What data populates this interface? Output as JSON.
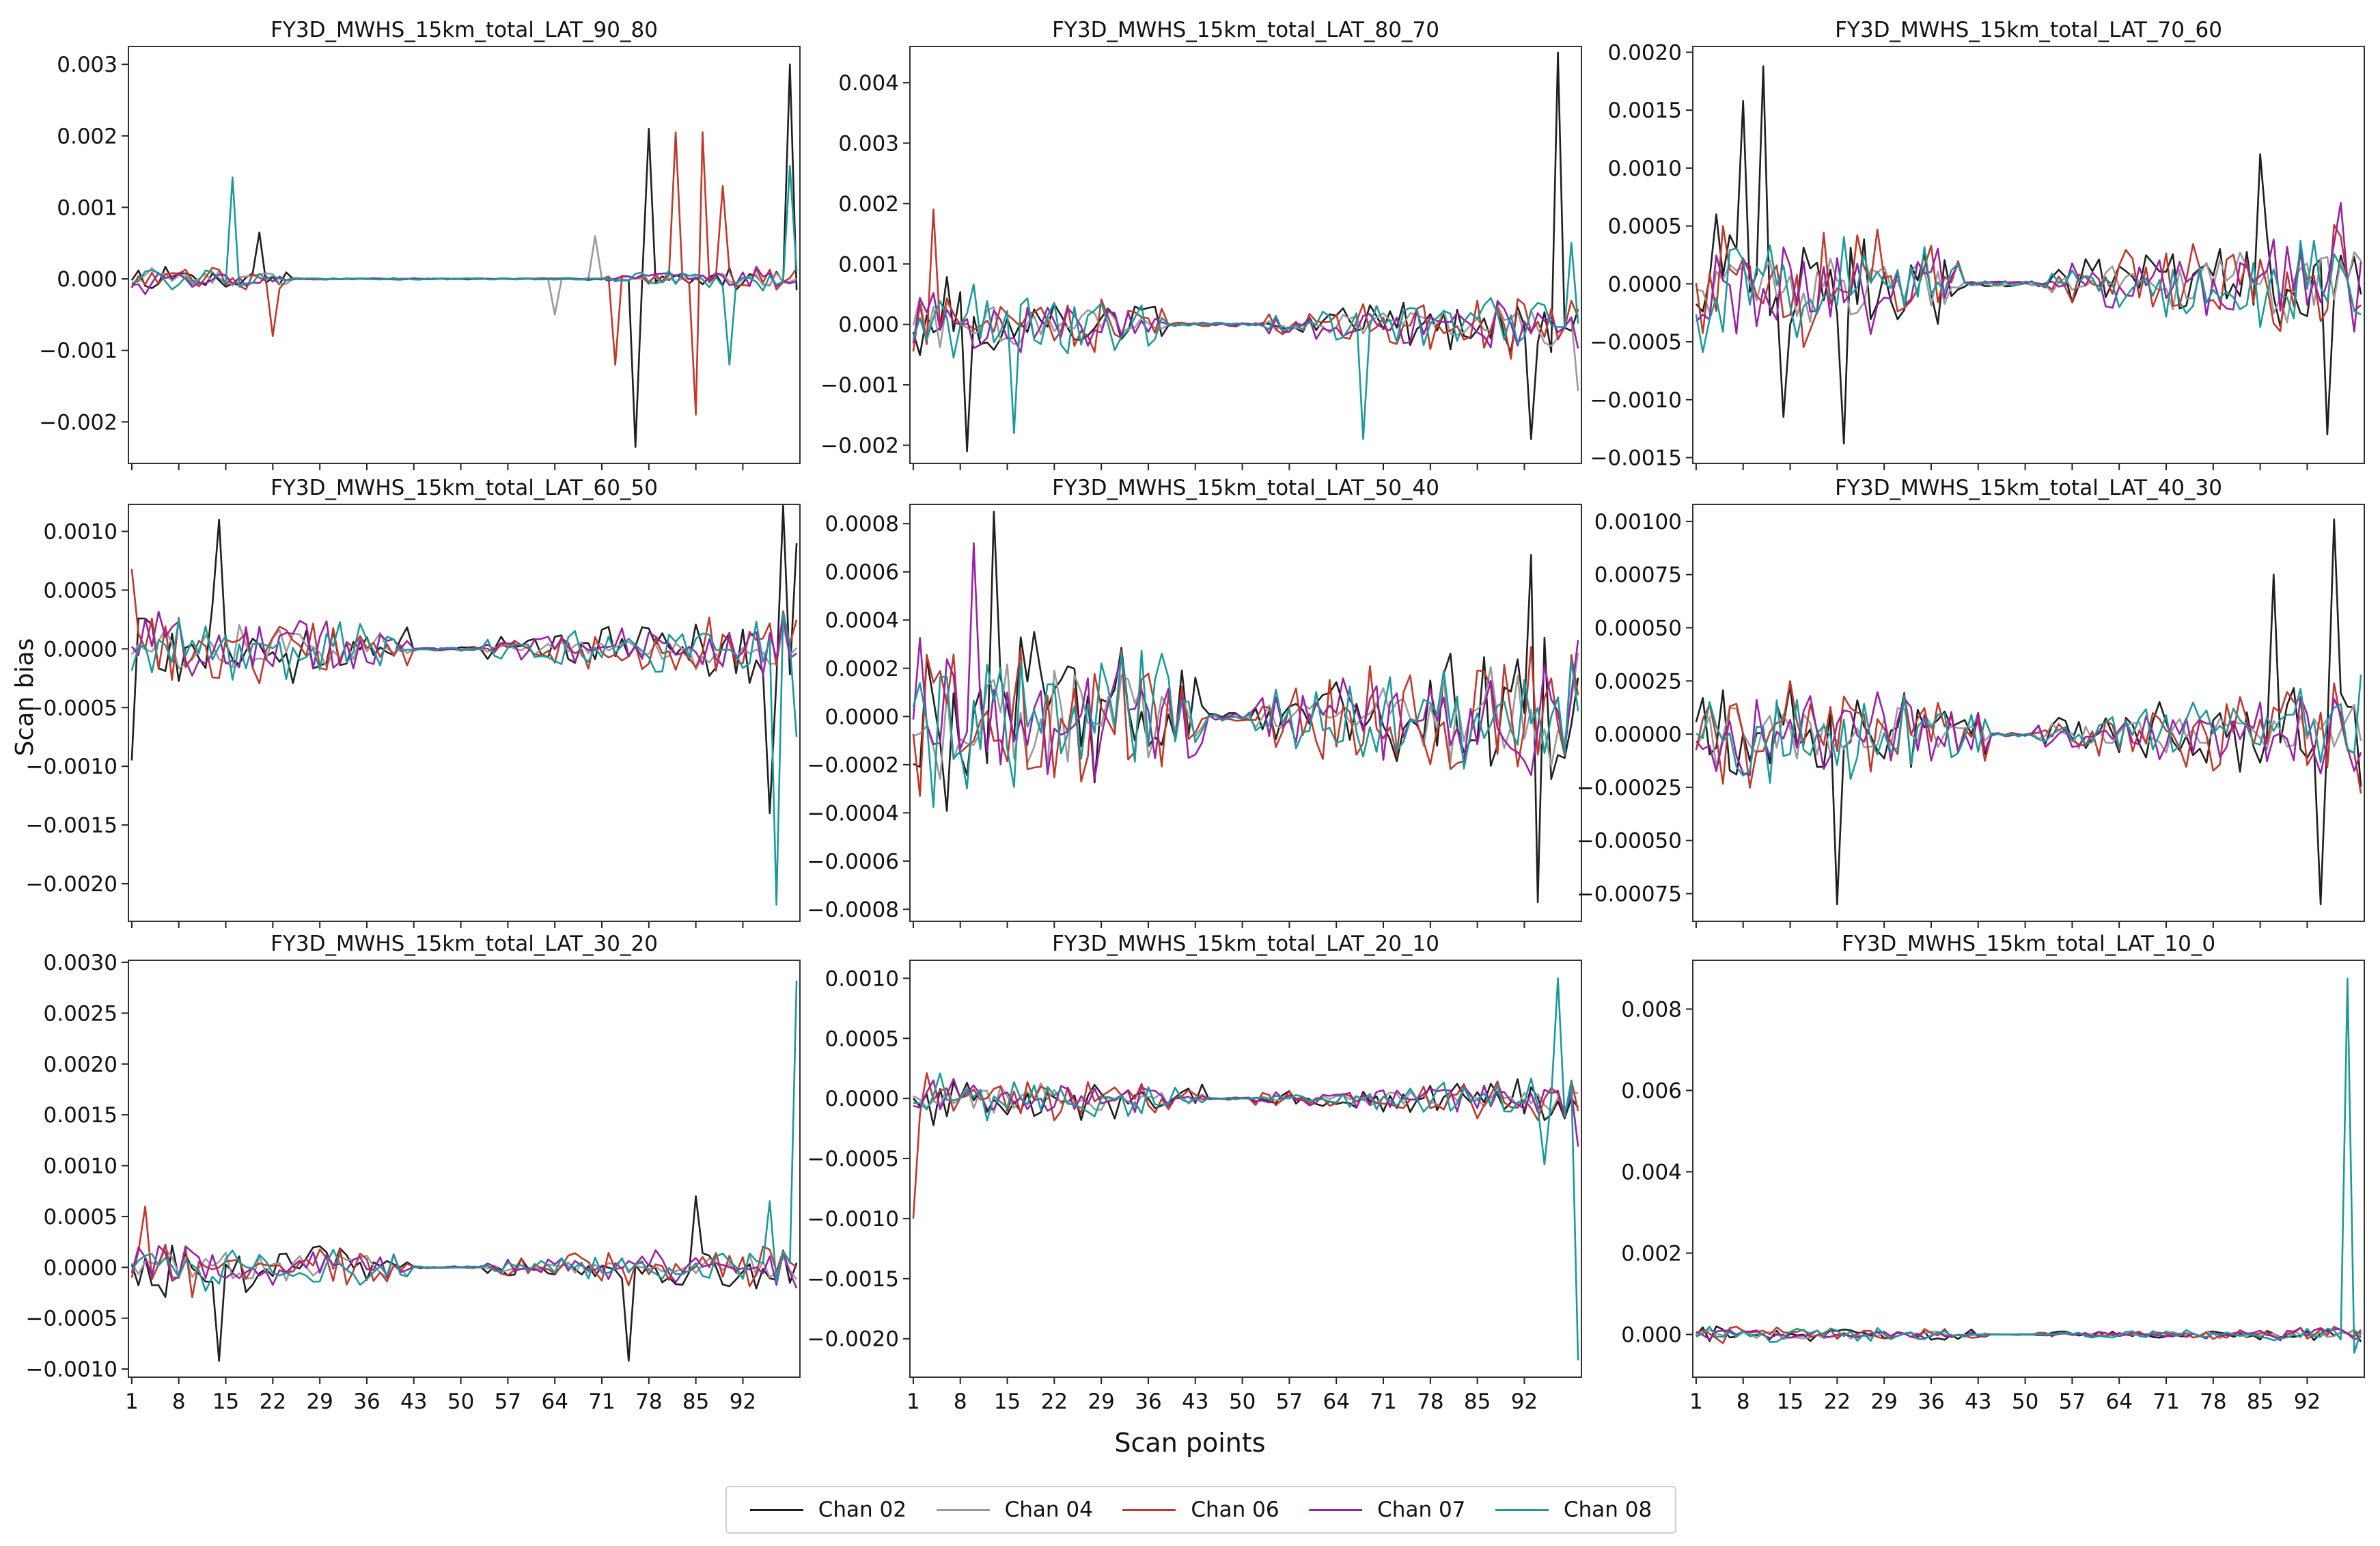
{
  "chart_data": {
    "type": "line",
    "ylabel": "Scan bias",
    "xlabel": "Scan points",
    "x_tick_labels": [
      "1",
      "8",
      "15",
      "22",
      "29",
      "36",
      "43",
      "50",
      "57",
      "64",
      "71",
      "78",
      "85",
      "92"
    ],
    "x_tick_values": [
      1,
      8,
      15,
      22,
      29,
      36,
      43,
      50,
      57,
      64,
      71,
      78,
      85,
      92
    ],
    "xlim": [
      -0.5,
      99.5
    ],
    "legend": [
      {
        "name": "Chan 02",
        "color": "#1f1f1f"
      },
      {
        "name": "Chan 04",
        "color": "#9a9a9a"
      },
      {
        "name": "Chan 06",
        "color": "#c0392b"
      },
      {
        "name": "Chan 07",
        "color": "#9b1fa8"
      },
      {
        "name": "Chan 08",
        "color": "#1a9a9a"
      }
    ],
    "panels": [
      {
        "title": "FY3D_MWHS_15km_total_LAT_90_80",
        "ylim": [
          -0.00258,
          0.00325
        ],
        "yticks": [
          0.003,
          0.002,
          0.001,
          0.0,
          -0.001,
          -0.002
        ],
        "ytick_labels": [
          "0.003",
          "0.002",
          "0.001",
          "0.000",
          "−0.001",
          "−0.002"
        ],
        "amp": 0.00018,
        "quiet": [
          24,
          70
        ],
        "spikes": [
          [
            0,
            75,
            -0.00235
          ],
          [
            0,
            77,
            0.0021
          ],
          [
            0,
            98,
            0.003
          ],
          [
            2,
            81,
            0.00205
          ],
          [
            2,
            85,
            0.00205
          ],
          [
            2,
            84,
            -0.0019
          ],
          [
            2,
            88,
            0.0013
          ],
          [
            2,
            72,
            -0.0012
          ],
          [
            4,
            15,
            0.00142
          ],
          [
            4,
            98,
            0.00158
          ],
          [
            4,
            89,
            -0.0012
          ],
          [
            1,
            69,
            0.0006
          ],
          [
            1,
            63,
            -0.0005
          ],
          [
            0,
            19,
            0.00065
          ],
          [
            2,
            21,
            -0.0008
          ]
        ]
      },
      {
        "title": "FY3D_MWHS_15km_total_LAT_80_70",
        "ylim": [
          -0.0023,
          0.0046
        ],
        "yticks": [
          0.004,
          0.003,
          0.002,
          0.001,
          0.0,
          -0.001,
          -0.002
        ],
        "ytick_labels": [
          "0.004",
          "0.003",
          "0.002",
          "0.001",
          "0.000",
          "−0.001",
          "−0.002"
        ],
        "amp": 0.00055,
        "quiet": [
          38,
          52
        ],
        "spikes": [
          [
            0,
            96,
            0.0045
          ],
          [
            0,
            8,
            -0.0021
          ],
          [
            2,
            3,
            0.0019
          ],
          [
            4,
            15,
            -0.0018
          ],
          [
            0,
            92,
            -0.0019
          ],
          [
            4,
            67,
            -0.0019
          ],
          [
            4,
            98,
            0.00135
          ],
          [
            1,
            99,
            -0.0011
          ]
        ]
      },
      {
        "title": "FY3D_MWHS_15km_total_LAT_70_60",
        "ylim": [
          -0.00155,
          0.00205
        ],
        "yticks": [
          0.002,
          0.0015,
          0.001,
          0.0005,
          0.0,
          -0.0005,
          -0.001,
          -0.0015
        ],
        "ytick_labels": [
          "0.0020",
          "0.0015",
          "0.0010",
          "0.0005",
          "0.0000",
          "−0.0005",
          "−0.0010",
          "−0.0015"
        ],
        "amp": 0.00048,
        "quiet": [
          40,
          52
        ],
        "spikes": [
          [
            0,
            10,
            0.00188
          ],
          [
            0,
            7,
            0.00158
          ],
          [
            0,
            22,
            -0.00138
          ],
          [
            0,
            13,
            -0.00115
          ],
          [
            0,
            94,
            -0.0013
          ],
          [
            0,
            84,
            0.00112
          ],
          [
            3,
            96,
            0.0007
          ]
        ]
      },
      {
        "title": "FY3D_MWHS_15km_total_LAT_60_50",
        "ylim": [
          -0.00232,
          0.00123
        ],
        "yticks": [
          0.001,
          0.0005,
          0.0,
          -0.0005,
          -0.001,
          -0.0015,
          -0.002
        ],
        "ytick_labels": [
          "0.0010",
          "0.0005",
          "0.0000",
          "−0.0005",
          "−0.0010",
          "−0.0015",
          "−0.0020"
        ],
        "amp": 0.00028,
        "quiet": [
          42,
          52
        ],
        "spikes": [
          [
            4,
            96,
            -0.00218
          ],
          [
            0,
            97,
            0.00122
          ],
          [
            0,
            95,
            -0.0014
          ],
          [
            0,
            13,
            0.0011
          ],
          [
            0,
            0,
            -0.00095
          ],
          [
            0,
            99,
            0.0009
          ],
          [
            2,
            0,
            0.00068
          ],
          [
            4,
            99,
            -0.00075
          ]
        ]
      },
      {
        "title": "FY3D_MWHS_15km_total_LAT_50_40",
        "ylim": [
          -0.00085,
          0.00088
        ],
        "yticks": [
          0.0008,
          0.0006,
          0.0004,
          0.0002,
          0.0,
          -0.0002,
          -0.0004,
          -0.0006,
          -0.0008
        ],
        "ytick_labels": [
          "0.0008",
          "0.0006",
          "0.0004",
          "0.0002",
          "0.0000",
          "−0.0002",
          "−0.0004",
          "−0.0006",
          "−0.0008"
        ],
        "amp": 0.00032,
        "quiet": [
          44,
          50
        ],
        "spikes": [
          [
            0,
            12,
            0.00085
          ],
          [
            3,
            9,
            0.00072
          ],
          [
            0,
            93,
            -0.00077
          ],
          [
            0,
            92,
            0.00067
          ]
        ]
      },
      {
        "title": "FY3D_MWHS_15km_total_LAT_40_30",
        "ylim": [
          -0.00088,
          0.00108
        ],
        "yticks": [
          0.001,
          0.00075,
          0.0005,
          0.00025,
          0.0,
          -0.00025,
          -0.0005,
          -0.00075
        ],
        "ytick_labels": [
          "0.00100",
          "0.00075",
          "0.00050",
          "0.00025",
          "0.00000",
          "−0.00025",
          "−0.00050",
          "−0.00075"
        ],
        "amp": 0.00022,
        "quiet": [
          44,
          50
        ],
        "spikes": [
          [
            0,
            95,
            0.00101
          ],
          [
            0,
            93,
            -0.0008
          ],
          [
            0,
            86,
            0.00075
          ],
          [
            0,
            21,
            -0.0008
          ]
        ]
      },
      {
        "title": "FY3D_MWHS_15km_total_LAT_30_20",
        "ylim": [
          -0.00108,
          0.00302
        ],
        "yticks": [
          0.003,
          0.0025,
          0.002,
          0.0015,
          0.001,
          0.0005,
          0.0,
          -0.0005,
          -0.001
        ],
        "ytick_labels": [
          "0.0030",
          "0.0025",
          "0.0020",
          "0.0015",
          "0.0010",
          "0.0005",
          "0.0000",
          "−0.0005",
          "−0.0010"
        ],
        "amp": 0.00022,
        "quiet": [
          42,
          52
        ],
        "spikes": [
          [
            4,
            99,
            0.00282
          ],
          [
            0,
            13,
            -0.00092
          ],
          [
            0,
            74,
            -0.00092
          ],
          [
            0,
            84,
            0.0007
          ],
          [
            2,
            2,
            0.0006
          ],
          [
            4,
            95,
            0.00065
          ]
        ]
      },
      {
        "title": "FY3D_MWHS_15km_total_LAT_20_10",
        "ylim": [
          -0.00232,
          0.00115
        ],
        "yticks": [
          0.001,
          0.0005,
          0.0,
          -0.0005,
          -0.001,
          -0.0015,
          -0.002
        ],
        "ytick_labels": [
          "0.0010",
          "0.0005",
          "0.0000",
          "−0.0005",
          "−0.0010",
          "−0.0015",
          "−0.0020"
        ],
        "amp": 0.00017,
        "quiet": [
          44,
          50
        ],
        "spikes": [
          [
            4,
            99,
            -0.00218
          ],
          [
            4,
            96,
            0.001
          ],
          [
            2,
            0,
            -0.001
          ],
          [
            4,
            94,
            -0.00055
          ],
          [
            3,
            99,
            -0.0004
          ]
        ]
      },
      {
        "title": "FY3D_MWHS_15km_total_LAT_10_0",
        "ylim": [
          -0.00105,
          0.0092
        ],
        "yticks": [
          0.008,
          0.006,
          0.004,
          0.002,
          0.0
        ],
        "ytick_labels": [
          "0.008",
          "0.006",
          "0.004",
          "0.002",
          "0.000"
        ],
        "amp": 0.00017,
        "quiet": [
          44,
          50
        ],
        "spikes": [
          [
            4,
            97,
            0.00875
          ],
          [
            4,
            98,
            -0.00045
          ]
        ]
      }
    ]
  }
}
